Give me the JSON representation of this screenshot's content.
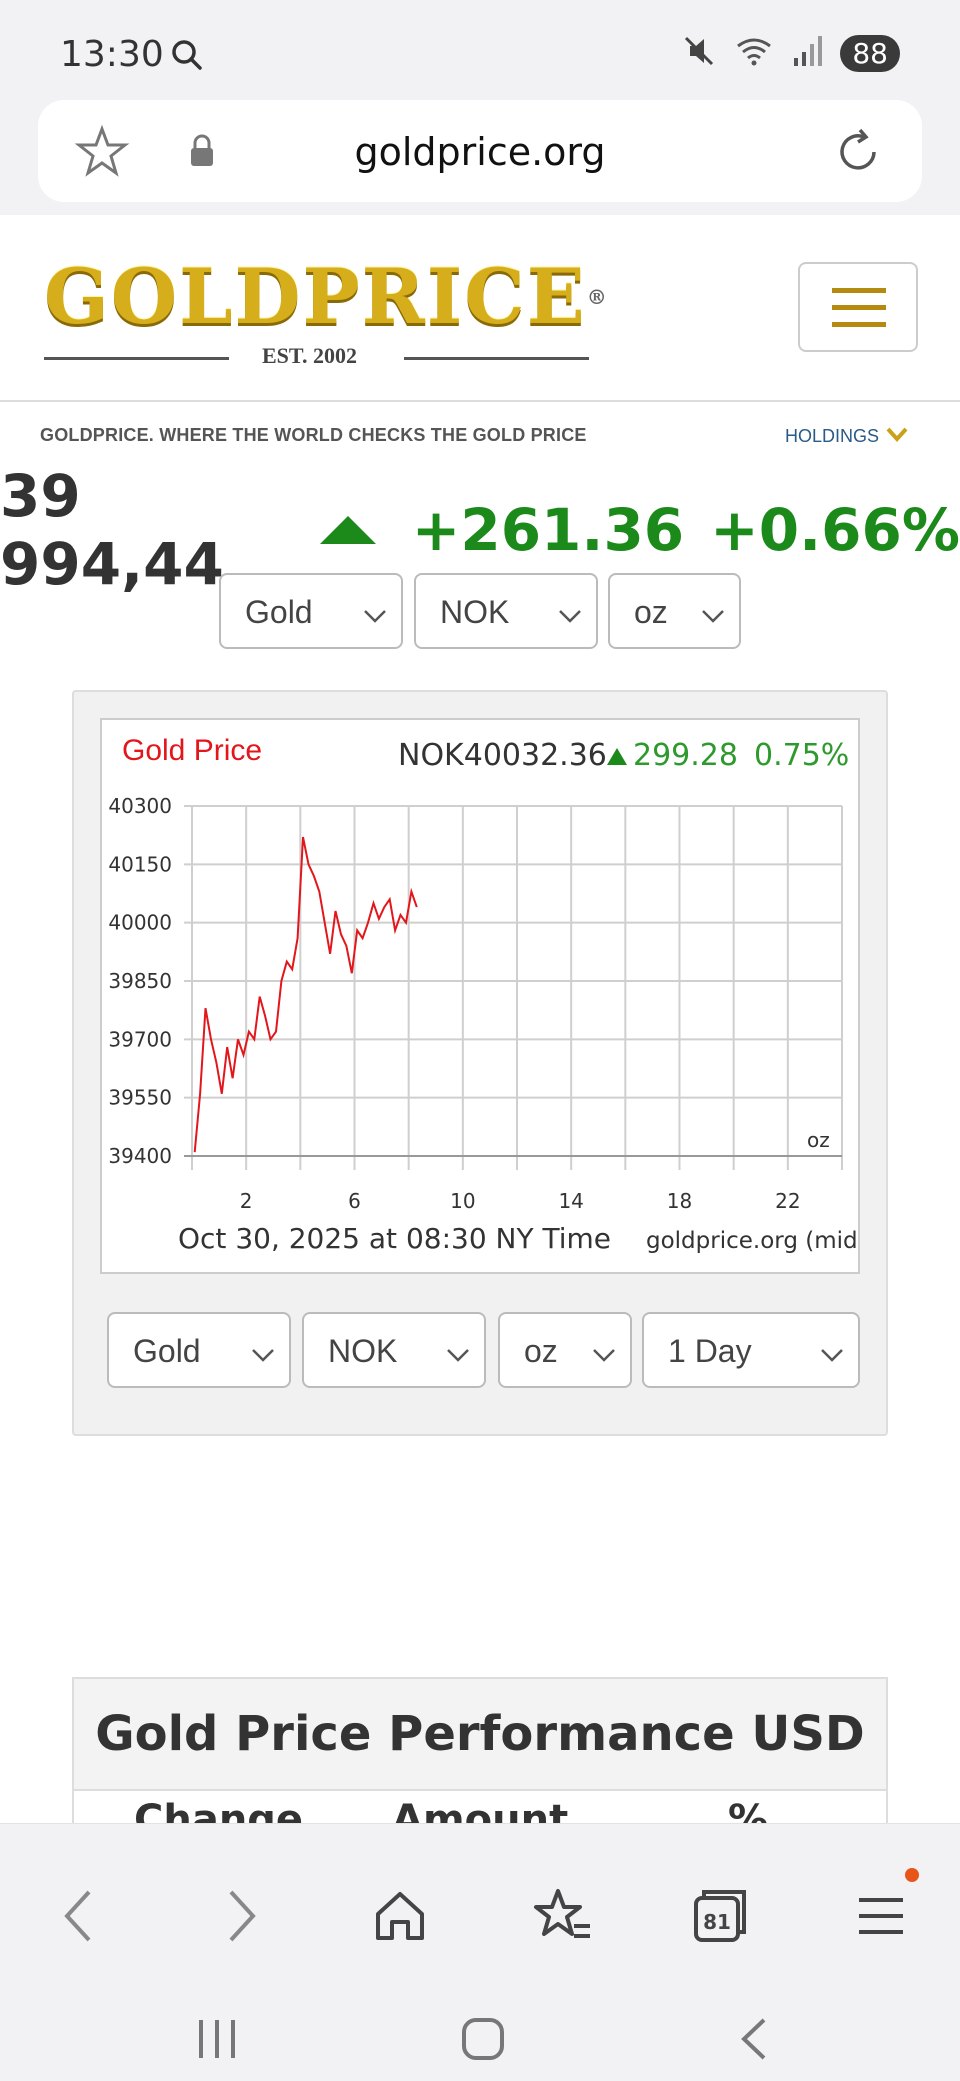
{
  "status_bar": {
    "time": "13:30",
    "battery": "88"
  },
  "url_bar": {
    "url": "goldprice.org"
  },
  "header": {
    "logo_text": "GOLDPRICE",
    "logo_est": "EST. 2002"
  },
  "tagline": "GOLDPRICE. WHERE THE WORLD CHECKS THE GOLD PRICE",
  "holdings_label": "HOLDINGS",
  "price": {
    "value": "39 994,44",
    "change": "+261.36",
    "change_pct": "+0.66%"
  },
  "selectors_top": {
    "metal": "Gold",
    "currency": "NOK",
    "unit": "oz"
  },
  "chart_header": {
    "title": "Gold Price",
    "currency_price": "NOK40032.36",
    "change": "299.28",
    "change_pct": "0.75%"
  },
  "chart_footer": {
    "timestamp": "Oct 30, 2025 at 08:30 NY Time",
    "source": "goldprice.org (mid)",
    "unit": "oz"
  },
  "selectors_bottom": {
    "metal": "Gold",
    "currency": "NOK",
    "unit": "oz",
    "range": "1 Day"
  },
  "performance": {
    "title": "Gold Price Performance USD",
    "columns": [
      "Change",
      "Amount",
      "%"
    ]
  },
  "nav": {
    "tabs_count": "81"
  },
  "colors": {
    "up_green": "#1b8a1b",
    "chart_line": "#e3161b",
    "gold_brand": "#d6ae1c"
  },
  "chart_data": {
    "type": "line",
    "title": "Gold Price",
    "x_ticks": [
      2,
      6,
      10,
      14,
      18,
      22
    ],
    "y_ticks": [
      39400,
      39550,
      39700,
      39850,
      40000,
      40150,
      40300
    ],
    "xlim": [
      0,
      24
    ],
    "ylim": [
      39400,
      40300
    ],
    "grid": true,
    "series": [
      {
        "x": [
          0.1,
          0.3,
          0.5,
          0.7,
          0.9,
          1.1,
          1.3,
          1.5,
          1.7,
          1.9,
          2.1,
          2.3,
          2.5,
          2.7,
          2.9,
          3.1,
          3.3,
          3.5,
          3.7,
          3.9,
          4.1,
          4.3,
          4.5,
          4.7,
          4.9,
          5.1,
          5.3,
          5.5,
          5.7,
          5.9,
          6.1,
          6.3,
          6.5,
          6.7,
          6.9,
          7.1,
          7.3,
          7.5,
          7.7,
          7.9,
          8.1,
          8.3
        ],
        "y": [
          39410,
          39560,
          39780,
          39700,
          39640,
          39560,
          39680,
          39600,
          39700,
          39660,
          39720,
          39700,
          39810,
          39760,
          39700,
          39720,
          39850,
          39900,
          39880,
          39960,
          40220,
          40150,
          40120,
          40080,
          40000,
          39920,
          40030,
          39970,
          39940,
          39870,
          39980,
          39960,
          40000,
          40050,
          40010,
          40040,
          40060,
          39980,
          40020,
          40000,
          40080,
          40040
        ]
      }
    ]
  }
}
